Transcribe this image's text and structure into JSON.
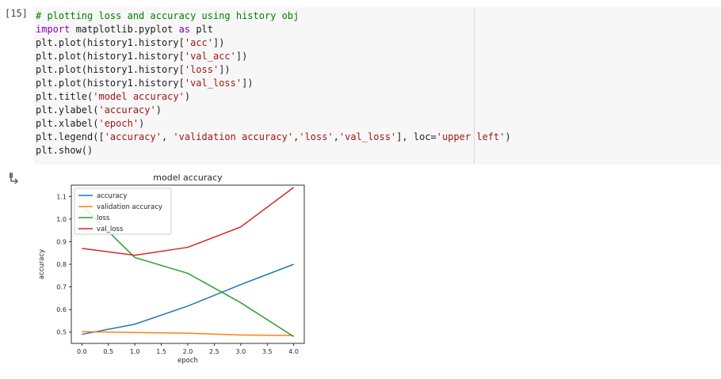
{
  "cell": {
    "prompt": "[15]",
    "lines": [
      [
        {
          "t": "# plotting loss and accuracy using history obj",
          "c": "comment"
        }
      ],
      [
        {
          "t": "import",
          "c": "kw"
        },
        {
          "t": " matplotlib.pyplot "
        },
        {
          "t": "as",
          "c": "kw"
        },
        {
          "t": " plt"
        }
      ],
      [
        {
          "t": "plt.plot(history1.history["
        },
        {
          "t": "'acc'",
          "c": "str"
        },
        {
          "t": "])"
        }
      ],
      [
        {
          "t": "plt.plot(history1.history["
        },
        {
          "t": "'val_acc'",
          "c": "str"
        },
        {
          "t": "])"
        }
      ],
      [
        {
          "t": "plt.plot(history1.history["
        },
        {
          "t": "'loss'",
          "c": "str"
        },
        {
          "t": "])"
        }
      ],
      [
        {
          "t": "plt.plot(history1.history["
        },
        {
          "t": "'val_loss'",
          "c": "str"
        },
        {
          "t": "])"
        }
      ],
      [
        {
          "t": "plt.title("
        },
        {
          "t": "'model accuracy'",
          "c": "str"
        },
        {
          "t": ")"
        }
      ],
      [
        {
          "t": "plt.ylabel("
        },
        {
          "t": "'accuracy'",
          "c": "str"
        },
        {
          "t": ")"
        }
      ],
      [
        {
          "t": "plt.xlabel("
        },
        {
          "t": "'epoch'",
          "c": "str"
        },
        {
          "t": ")"
        }
      ],
      [
        {
          "t": "plt.legend(["
        },
        {
          "t": "'accuracy'",
          "c": "str"
        },
        {
          "t": ", "
        },
        {
          "t": "'validation accuracy'",
          "c": "str"
        },
        {
          "t": ","
        },
        {
          "t": "'loss'",
          "c": "str"
        },
        {
          "t": ","
        },
        {
          "t": "'val_loss'",
          "c": "str"
        },
        {
          "t": "], loc="
        },
        {
          "t": "'upper left'",
          "c": "str"
        },
        {
          "t": ")"
        }
      ],
      [
        {
          "t": "plt.show()"
        }
      ]
    ]
  },
  "output": {
    "icon": "output-arrow-icon"
  },
  "chart_data": {
    "type": "line",
    "title": "model accuracy",
    "xlabel": "epoch",
    "ylabel": "accuracy",
    "x": [
      0,
      1,
      2,
      3,
      4
    ],
    "xticks": [
      "0.0",
      "0.5",
      "1.0",
      "1.5",
      "2.0",
      "2.5",
      "3.0",
      "3.5",
      "4.0"
    ],
    "yticks": [
      "0.5",
      "0.6",
      "0.7",
      "0.8",
      "0.9",
      "1.0",
      "1.1"
    ],
    "xlim": [
      -0.2,
      4.2
    ],
    "ylim": [
      0.45,
      1.15
    ],
    "grid": false,
    "legend_position": "upper left",
    "series": [
      {
        "name": "accuracy",
        "color": "#1f77b4",
        "values": [
          0.49,
          0.535,
          0.615,
          0.71,
          0.8
        ]
      },
      {
        "name": "validation accuracy",
        "color": "#ff7f0e",
        "values": [
          0.502,
          0.498,
          0.495,
          0.487,
          0.485
        ]
      },
      {
        "name": "loss",
        "color": "#2ca02c",
        "values": [
          1.06,
          0.83,
          0.76,
          0.63,
          0.48
        ]
      },
      {
        "name": "val_loss",
        "color": "#d62728",
        "values": [
          0.87,
          0.84,
          0.875,
          0.965,
          1.14
        ]
      }
    ]
  }
}
